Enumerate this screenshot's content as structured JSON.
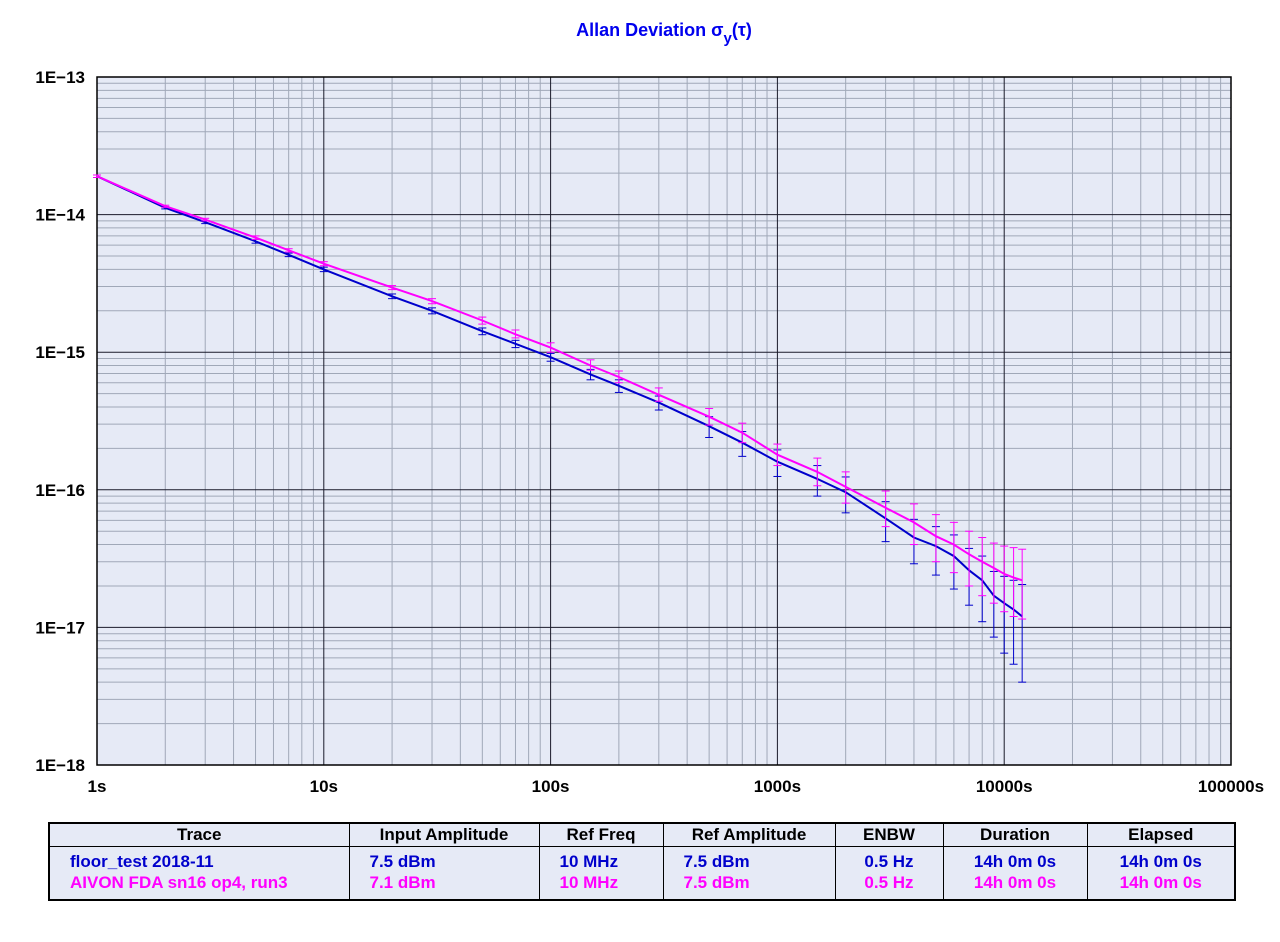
{
  "chart_data": {
    "type": "line",
    "title": "Allan Deviation σ",
    "title_sub": "y",
    "title_suffix": "(τ)",
    "xscale": "log",
    "yscale": "log",
    "xlim": [
      1,
      100000
    ],
    "ylim": [
      1e-18,
      1e-13
    ],
    "grid": true,
    "plot_background": "#e6eaf6",
    "xticks": [
      1,
      10,
      100,
      1000,
      10000,
      100000
    ],
    "xtick_labels": [
      "1s",
      "10s",
      "100s",
      "1000s",
      "10000s",
      "100000s"
    ],
    "yticks": [
      1e-13,
      1e-14,
      1e-15,
      1e-16,
      1e-17,
      1e-18
    ],
    "ytick_labels": [
      "1E−13",
      "1E−14",
      "1E−15",
      "1E−16",
      "1E−17",
      "1E−18"
    ],
    "series": [
      {
        "name": "floor_test 2018-11",
        "color": "#0000cc",
        "x": [
          1,
          2,
          3,
          5,
          7,
          10,
          20,
          30,
          50,
          70,
          100,
          150,
          200,
          300,
          500,
          700,
          1000,
          1500,
          2000,
          3000,
          4000,
          5000,
          6000,
          7000,
          8000,
          9000,
          10000,
          11000,
          12000
        ],
        "y": [
          1.9e-14,
          1.12e-14,
          8.8e-15,
          6.4e-15,
          5.1e-15,
          4e-15,
          2.55e-15,
          2e-15,
          1.42e-15,
          1.15e-15,
          9.2e-16,
          6.9e-16,
          5.7e-16,
          4.3e-16,
          2.9e-16,
          2.2e-16,
          1.6e-16,
          1.2e-16,
          9.6e-17,
          6.2e-17,
          4.5e-17,
          3.9e-17,
          3.3e-17,
          2.6e-17,
          2.2e-17,
          1.7e-17,
          1.5e-17,
          1.35e-17,
          1.2e-17
        ],
        "err_low": [
          1.86e-14,
          1.1e-14,
          8.6e-15,
          6.2e-15,
          4.95e-15,
          3.85e-15,
          2.45e-15,
          1.9e-15,
          1.34e-15,
          1.08e-15,
          8.6e-16,
          6.3e-16,
          5.1e-16,
          3.8e-16,
          2.4e-16,
          1.75e-16,
          1.25e-16,
          9e-17,
          6.8e-17,
          4.2e-17,
          2.9e-17,
          2.4e-17,
          1.9e-17,
          1.45e-17,
          1.1e-17,
          8.5e-18,
          6.5e-18,
          5.4e-18,
          4e-18
        ],
        "err_high": [
          1.94e-14,
          1.14e-14,
          9e-15,
          6.6e-15,
          5.25e-15,
          4.15e-15,
          2.65e-15,
          2.1e-15,
          1.5e-15,
          1.22e-15,
          9.8e-16,
          7.5e-16,
          6.3e-16,
          4.8e-16,
          3.4e-16,
          2.65e-16,
          1.95e-16,
          1.5e-16,
          1.24e-16,
          8.2e-17,
          6.1e-17,
          5.4e-17,
          4.7e-17,
          3.75e-17,
          3.3e-17,
          2.55e-17,
          2.35e-17,
          2.2e-17,
          2.05e-17
        ]
      },
      {
        "name": "AIVON FDA sn16 op4, run3",
        "color": "#ff00ff",
        "x": [
          1,
          2,
          3,
          5,
          7,
          10,
          20,
          30,
          50,
          70,
          100,
          150,
          200,
          300,
          500,
          700,
          1000,
          1500,
          2000,
          3000,
          4000,
          5000,
          6000,
          7000,
          8000,
          9000,
          10000,
          11000,
          12000
        ],
        "y": [
          1.9e-14,
          1.15e-14,
          9.2e-15,
          6.8e-15,
          5.5e-15,
          4.4e-15,
          2.95e-15,
          2.35e-15,
          1.7e-15,
          1.35e-15,
          1.08e-15,
          8e-16,
          6.6e-16,
          4.9e-16,
          3.4e-16,
          2.6e-16,
          1.8e-16,
          1.35e-16,
          1.05e-16,
          7.4e-17,
          5.8e-17,
          4.6e-17,
          4e-17,
          3.4e-17,
          3e-17,
          2.7e-17,
          2.45e-17,
          2.3e-17,
          2.2e-17
        ],
        "err_low": [
          1.86e-14,
          1.13e-14,
          9e-15,
          6.6e-15,
          5.35e-15,
          4.25e-15,
          2.85e-15,
          2.25e-15,
          1.6e-15,
          1.27e-15,
          1e-15,
          7.4e-16,
          6e-16,
          4.4e-16,
          2.95e-16,
          2.2e-16,
          1.5e-16,
          1.07e-16,
          8e-17,
          5.4e-17,
          4e-17,
          3e-17,
          2.5e-17,
          2e-17,
          1.7e-17,
          1.5e-17,
          1.3e-17,
          1.2e-17,
          1.15e-17
        ],
        "err_high": [
          1.94e-14,
          1.17e-14,
          9.4e-15,
          7e-15,
          5.65e-15,
          4.55e-15,
          3.05e-15,
          2.45e-15,
          1.8e-15,
          1.45e-15,
          1.17e-15,
          8.8e-16,
          7.3e-16,
          5.5e-16,
          3.9e-16,
          3.05e-16,
          2.15e-16,
          1.7e-16,
          1.35e-16,
          9.8e-17,
          7.9e-17,
          6.6e-17,
          5.8e-17,
          5e-17,
          4.5e-17,
          4.1e-17,
          3.9e-17,
          3.8e-17,
          3.7e-17
        ]
      }
    ]
  },
  "table": {
    "headers": [
      "Trace",
      "Input Amplitude",
      "Ref Freq",
      "Ref Amplitude",
      "ENBW",
      "Duration",
      "Elapsed"
    ],
    "rows": [
      {
        "color": "#0000cc",
        "cells": [
          "floor_test 2018-11",
          "7.5 dBm",
          "10 MHz",
          "7.5 dBm",
          "0.5 Hz",
          "14h 0m 0s",
          "14h 0m 0s"
        ]
      },
      {
        "color": "#ff00ff",
        "cells": [
          "AIVON FDA sn16 op4, run3",
          "7.1 dBm",
          "10 MHz",
          "7.5 dBm",
          "0.5 Hz",
          "14h 0m 0s",
          "14h 0m 0s"
        ]
      }
    ]
  }
}
